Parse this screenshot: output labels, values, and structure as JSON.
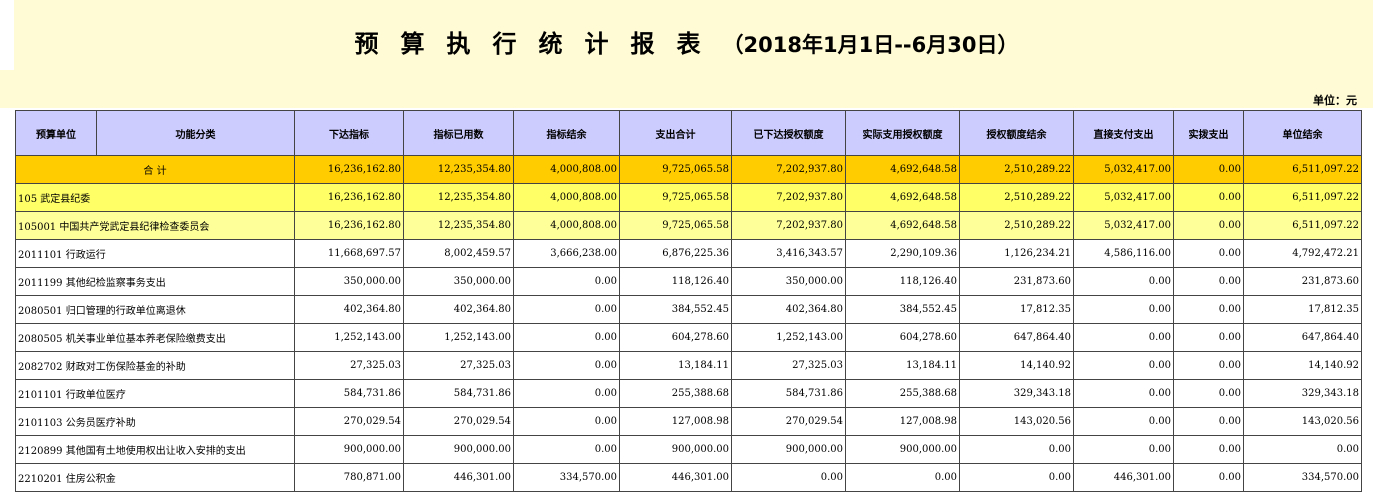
{
  "title": {
    "main": "预算执行统计报表",
    "period": "（2018年1月1日--6月30日）"
  },
  "unit_label": "单位：元",
  "columns": {
    "unit": "预算单位",
    "category": "功能分类",
    "values": [
      "下达指标",
      "指标已用数",
      "指标结余",
      "支出合计",
      "已下达授权额度",
      "实际支用授权额度",
      "授权额度结余",
      "直接支付支出",
      "实拨支出",
      "单位结余"
    ]
  },
  "rows": [
    {
      "type": "total",
      "name": "合  计",
      "values": [
        "16,236,162.80",
        "12,235,354.80",
        "4,000,808.00",
        "9,725,065.58",
        "7,202,937.80",
        "4,692,648.58",
        "2,510,289.22",
        "5,032,417.00",
        "0.00",
        "6,511,097.22"
      ]
    },
    {
      "type": "lvl1",
      "name": "105 武定县纪委",
      "values": [
        "16,236,162.80",
        "12,235,354.80",
        "4,000,808.00",
        "9,725,065.58",
        "7,202,937.80",
        "4,692,648.58",
        "2,510,289.22",
        "5,032,417.00",
        "0.00",
        "6,511,097.22"
      ]
    },
    {
      "type": "lvl2",
      "name": "105001 中国共产党武定县纪律检查委员会",
      "values": [
        "16,236,162.80",
        "12,235,354.80",
        "4,000,808.00",
        "9,725,065.58",
        "7,202,937.80",
        "4,692,648.58",
        "2,510,289.22",
        "5,032,417.00",
        "0.00",
        "6,511,097.22"
      ]
    },
    {
      "type": "item",
      "name": "2011101 行政运行",
      "values": [
        "11,668,697.57",
        "8,002,459.57",
        "3,666,238.00",
        "6,876,225.36",
        "3,416,343.57",
        "2,290,109.36",
        "1,126,234.21",
        "4,586,116.00",
        "0.00",
        "4,792,472.21"
      ]
    },
    {
      "type": "item",
      "name": "2011199 其他纪检监察事务支出",
      "values": [
        "350,000.00",
        "350,000.00",
        "0.00",
        "118,126.40",
        "350,000.00",
        "118,126.40",
        "231,873.60",
        "0.00",
        "0.00",
        "231,873.60"
      ]
    },
    {
      "type": "item",
      "name": "2080501 归口管理的行政单位离退休",
      "values": [
        "402,364.80",
        "402,364.80",
        "0.00",
        "384,552.45",
        "402,364.80",
        "384,552.45",
        "17,812.35",
        "0.00",
        "0.00",
        "17,812.35"
      ]
    },
    {
      "type": "item",
      "name": "2080505 机关事业单位基本养老保险缴费支出",
      "values": [
        "1,252,143.00",
        "1,252,143.00",
        "0.00",
        "604,278.60",
        "1,252,143.00",
        "604,278.60",
        "647,864.40",
        "0.00",
        "0.00",
        "647,864.40"
      ]
    },
    {
      "type": "item",
      "name": "2082702 财政对工伤保险基金的补助",
      "values": [
        "27,325.03",
        "27,325.03",
        "0.00",
        "13,184.11",
        "27,325.03",
        "13,184.11",
        "14,140.92",
        "0.00",
        "0.00",
        "14,140.92"
      ]
    },
    {
      "type": "item",
      "name": "2101101 行政单位医疗",
      "values": [
        "584,731.86",
        "584,731.86",
        "0.00",
        "255,388.68",
        "584,731.86",
        "255,388.68",
        "329,343.18",
        "0.00",
        "0.00",
        "329,343.18"
      ]
    },
    {
      "type": "item",
      "name": "2101103 公务员医疗补助",
      "values": [
        "270,029.54",
        "270,029.54",
        "0.00",
        "127,008.98",
        "270,029.54",
        "127,008.98",
        "143,020.56",
        "0.00",
        "0.00",
        "143,020.56"
      ]
    },
    {
      "type": "item",
      "name": "2120899 其他国有土地使用权出让收入安排的支出",
      "values": [
        "900,000.00",
        "900,000.00",
        "0.00",
        "900,000.00",
        "900,000.00",
        "900,000.00",
        "0.00",
        "0.00",
        "0.00",
        "0.00"
      ]
    },
    {
      "type": "item",
      "name": "2210201 住房公积金",
      "values": [
        "780,871.00",
        "446,301.00",
        "334,570.00",
        "446,301.00",
        "0.00",
        "0.00",
        "0.00",
        "446,301.00",
        "0.00",
        "334,570.00"
      ]
    }
  ]
}
